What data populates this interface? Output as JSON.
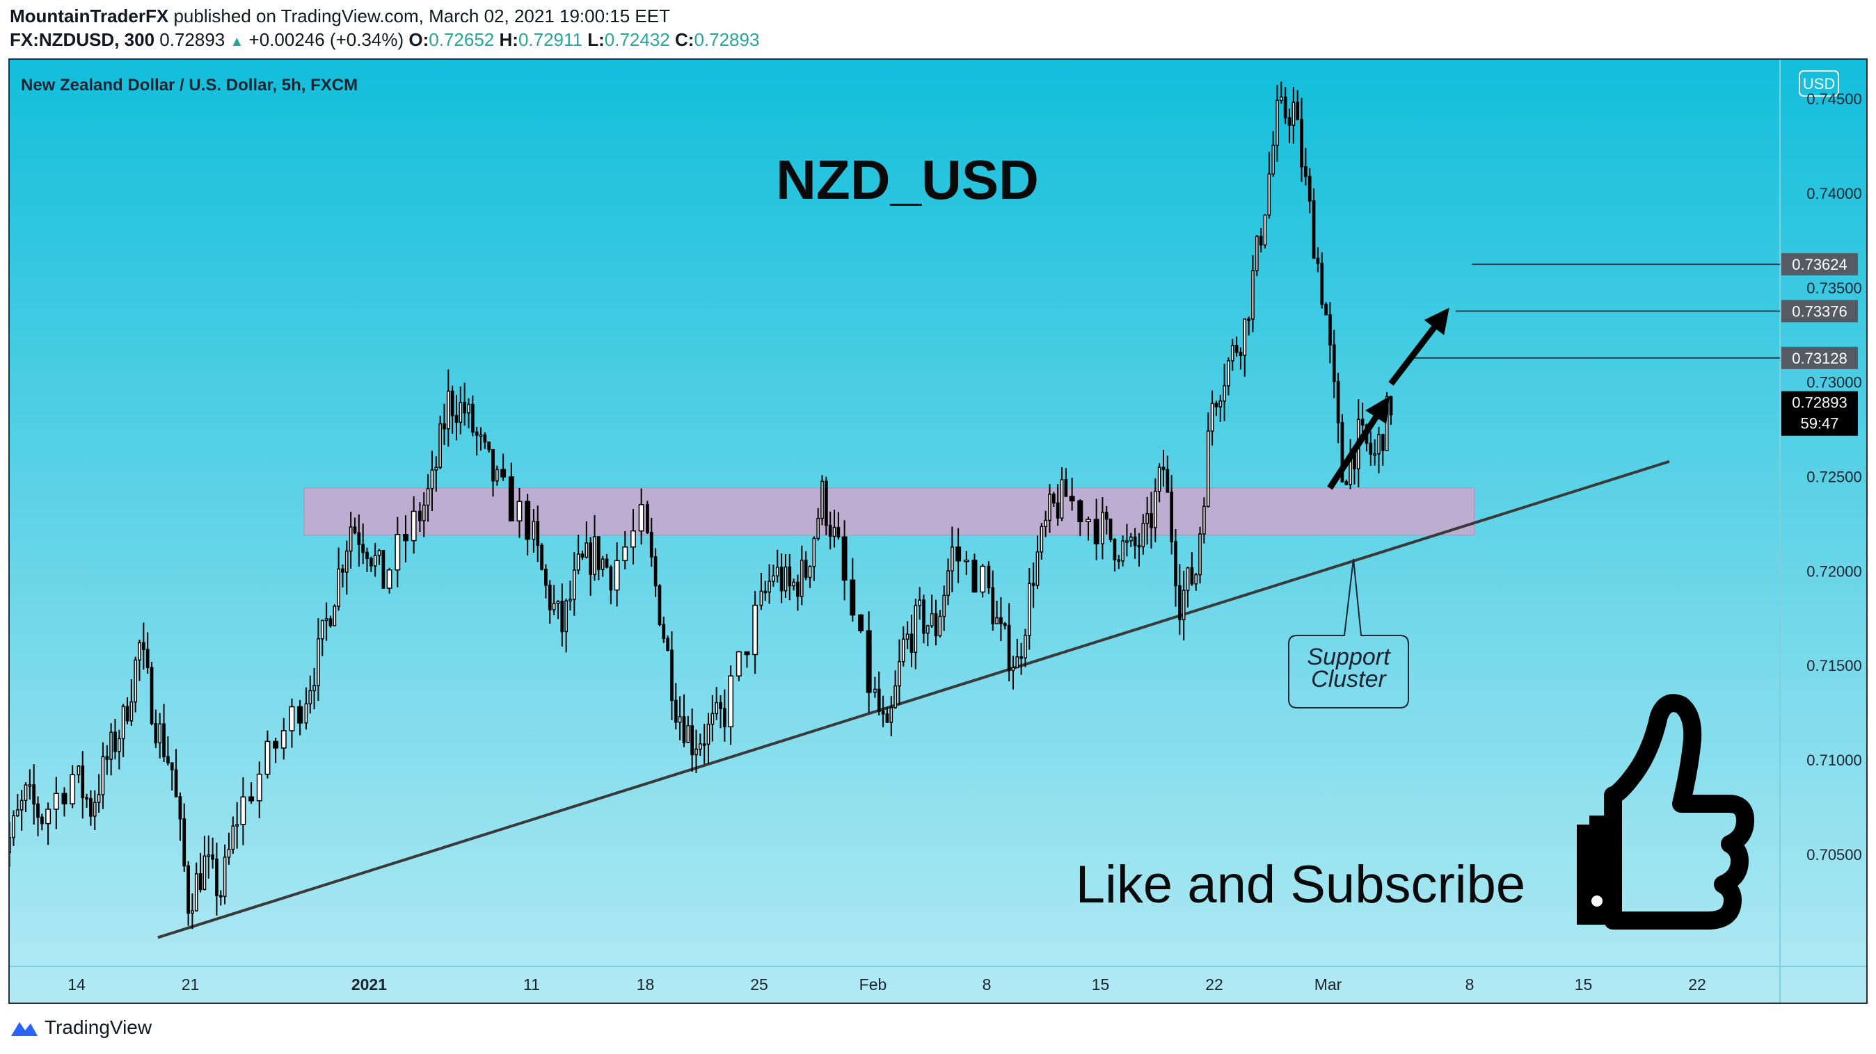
{
  "header": {
    "publisher": "MountainTraderFX",
    "published_text": " published on TradingView.com, March 02, 2021 19:00:15 EET",
    "symbol": "FX:NZDUSD, 300",
    "last": "0.72893",
    "change": "+0.00246 (+0.34%)",
    "o_label": "O:",
    "o": "0.72652",
    "h_label": "H:",
    "h": "0.72911",
    "l_label": "L:",
    "l": "0.72432",
    "c_label": "C:",
    "c": "0.72893"
  },
  "chart_title": "New Zealand Dollar / U.S. Dollar, 5h, FXCM",
  "currency_badge": "USD",
  "annotation_title": "NZD_USD",
  "support_label_line1": "Support",
  "support_label_line2": "Cluster",
  "cta_text": "Like and Subscribe",
  "footer_brand": "TradingView",
  "colors": {
    "bg_top": "#12bedb",
    "bg_bottom": "#b3eaf4",
    "zone": "#c8a9cd",
    "candle": "#000000",
    "trendline": "#3a3a3a",
    "price_label_bg": "#555b64",
    "last_price_bg": "#000000"
  },
  "chart_data": {
    "type": "candlestick",
    "symbol": "NZDUSD",
    "timeframe": "5h",
    "price_axis_ticks": [
      "0.74500",
      "0.74000",
      "0.73500",
      "0.73000",
      "0.72500",
      "0.72000",
      "0.71500",
      "0.71000",
      "0.70500"
    ],
    "price_axis_values": [
      0.745,
      0.74,
      0.735,
      0.73,
      0.725,
      0.72,
      0.715,
      0.71,
      0.705
    ],
    "time_axis_ticks": [
      "14",
      "21",
      "2021",
      "11",
      "18",
      "25",
      "Feb",
      "8",
      "15",
      "22",
      "Mar",
      "8",
      "15",
      "22"
    ],
    "ylim": [
      0.7007,
      0.7507
    ],
    "support_zone": [
      0.7219,
      0.7244
    ],
    "trendline": [
      {
        "date": "2020-12-19",
        "price": 0.7006
      },
      {
        "date": "2021-03-22",
        "price": 0.7258
      }
    ],
    "target_levels": [
      {
        "label": "0.73624",
        "price": 0.73624
      },
      {
        "label": "0.73376",
        "price": 0.73376
      },
      {
        "label": "0.73128",
        "price": 0.73128
      }
    ],
    "last_price": {
      "label": "0.72893",
      "countdown": "59:47",
      "price": 0.72893
    },
    "close_path": [
      [
        "2020-12-09",
        0.7045
      ],
      [
        "2020-12-10",
        0.7058
      ],
      [
        "2020-12-11",
        0.708
      ],
      [
        "2020-12-12",
        0.707
      ],
      [
        "2020-12-14",
        0.7092
      ],
      [
        "2020-12-15",
        0.7075
      ],
      [
        "2020-12-16",
        0.71
      ],
      [
        "2020-12-17",
        0.712
      ],
      [
        "2020-12-18",
        0.716
      ],
      [
        "2020-12-19",
        0.712
      ],
      [
        "2020-12-20",
        0.7095
      ],
      [
        "2020-12-21",
        0.7025
      ],
      [
        "2020-12-22",
        0.7045
      ],
      [
        "2020-12-23",
        0.703
      ],
      [
        "2020-12-24",
        0.707
      ],
      [
        "2020-12-26",
        0.71
      ],
      [
        "2020-12-28",
        0.713
      ],
      [
        "2020-12-29",
        0.7155
      ],
      [
        "2020-12-30",
        0.719
      ],
      [
        "2020-12-31",
        0.7225
      ],
      [
        "2021-01-01",
        0.7215
      ],
      [
        "2021-01-02",
        0.7195
      ],
      [
        "2021-01-04",
        0.7225
      ],
      [
        "2021-01-05",
        0.7245
      ],
      [
        "2021-01-06",
        0.729
      ],
      [
        "2021-01-07",
        0.7285
      ],
      [
        "2021-01-08",
        0.7265
      ],
      [
        "2021-01-09",
        0.7245
      ],
      [
        "2021-01-11",
        0.7225
      ],
      [
        "2021-01-12",
        0.719
      ],
      [
        "2021-01-13",
        0.717
      ],
      [
        "2021-01-14",
        0.72
      ],
      [
        "2021-01-15",
        0.721
      ],
      [
        "2021-01-16",
        0.72
      ],
      [
        "2021-01-18",
        0.7225
      ],
      [
        "2021-01-19",
        0.718
      ],
      [
        "2021-01-20",
        0.713
      ],
      [
        "2021-01-21",
        0.711
      ],
      [
        "2021-01-22",
        0.7115
      ],
      [
        "2021-01-23",
        0.7125
      ],
      [
        "2021-01-25",
        0.7175
      ],
      [
        "2021-01-26",
        0.72
      ],
      [
        "2021-01-27",
        0.719
      ],
      [
        "2021-01-28",
        0.72
      ],
      [
        "2021-01-29",
        0.724
      ],
      [
        "2021-01-30",
        0.721
      ],
      [
        "2021-02-01",
        0.714
      ],
      [
        "2021-02-02",
        0.711
      ],
      [
        "2021-02-03",
        0.716
      ],
      [
        "2021-02-04",
        0.7175
      ],
      [
        "2021-02-05",
        0.717
      ],
      [
        "2021-02-06",
        0.721
      ],
      [
        "2021-02-08",
        0.7195
      ],
      [
        "2021-02-09",
        0.7165
      ],
      [
        "2021-02-10",
        0.715
      ],
      [
        "2021-02-11",
        0.72
      ],
      [
        "2021-02-12",
        0.723
      ],
      [
        "2021-02-13",
        0.724
      ],
      [
        "2021-02-15",
        0.7225
      ],
      [
        "2021-02-16",
        0.7215
      ],
      [
        "2021-02-17",
        0.721
      ],
      [
        "2021-02-18",
        0.722
      ],
      [
        "2021-02-19",
        0.7255
      ],
      [
        "2021-02-20",
        0.7185
      ],
      [
        "2021-02-21",
        0.72
      ],
      [
        "2021-02-22",
        0.729
      ],
      [
        "2021-02-23",
        0.731
      ],
      [
        "2021-02-24",
        0.733
      ],
      [
        "2021-02-25",
        0.738
      ],
      [
        "2021-02-26",
        0.744
      ],
      [
        "2021-02-27",
        0.7445
      ],
      [
        "2021-02-28",
        0.739
      ],
      [
        "2021-03-01",
        0.7335
      ],
      [
        "2021-03-02",
        0.725
      ],
      [
        "2021-03-03",
        0.727
      ],
      [
        "2021-03-04",
        0.726
      ],
      [
        "2021-03-05",
        0.7289
      ]
    ]
  }
}
